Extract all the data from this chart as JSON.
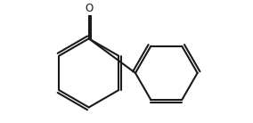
{
  "bg_color": "#ffffff",
  "line_color": "#1a1a1a",
  "line_width": 1.5,
  "font_size": 7.5,
  "figsize": [
    2.84,
    1.38
  ],
  "dpi": 100
}
